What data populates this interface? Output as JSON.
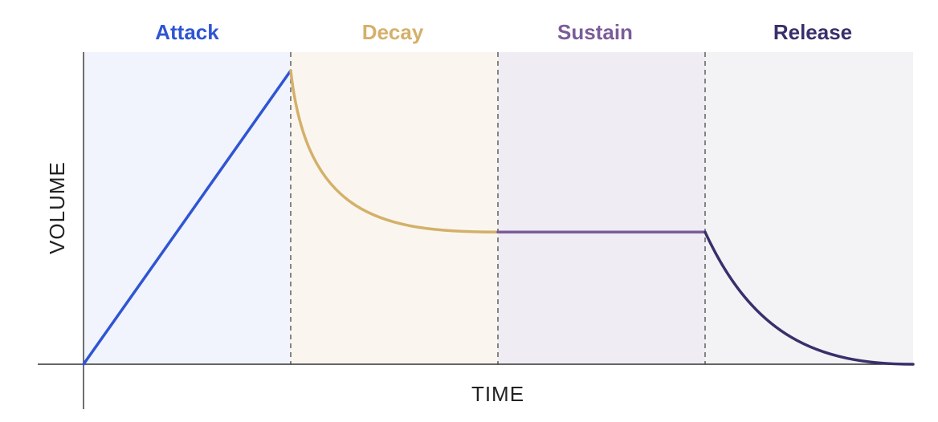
{
  "diagram": {
    "phases": [
      {
        "id": "attack",
        "label": "Attack",
        "color": "#2f55d4",
        "band_color": "#f1f4fc"
      },
      {
        "id": "decay",
        "label": "Decay",
        "color": "#d4b06a",
        "band_color": "#faf6ef"
      },
      {
        "id": "sustain",
        "label": "Sustain",
        "color": "#7b5c9a",
        "band_color": "#efecf3"
      },
      {
        "id": "release",
        "label": "Release",
        "color": "#3a2f6b",
        "band_color": "#f3f3f6"
      }
    ],
    "axes": {
      "x_label": "TIME",
      "y_label": "VOLUME",
      "axis_color": "#333333"
    },
    "envelope": {
      "peak_level": 1.0,
      "sustain_level": 0.45,
      "end_level": 0.0
    }
  }
}
